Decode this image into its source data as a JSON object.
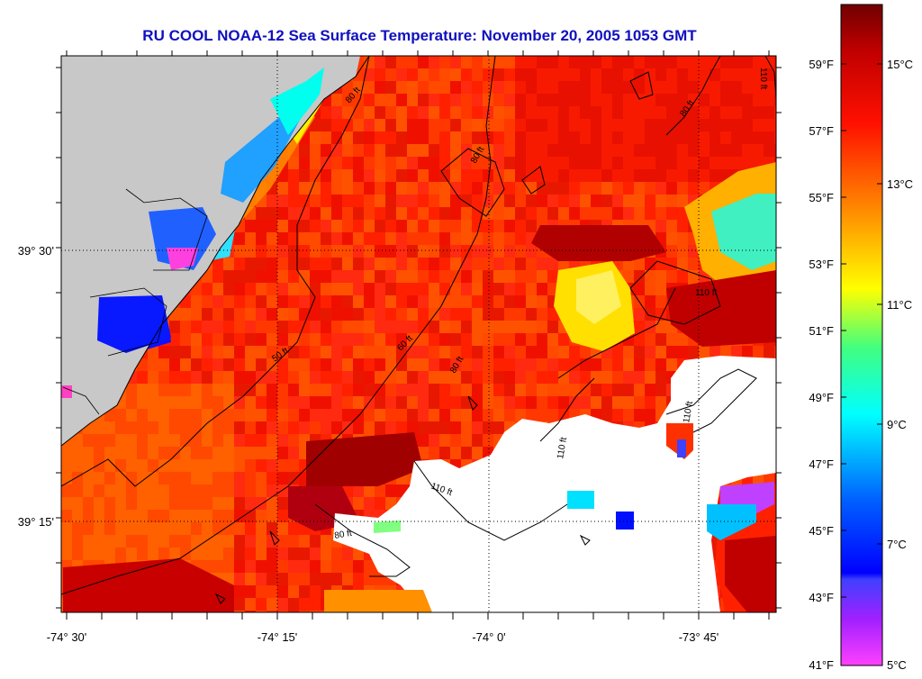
{
  "title": "RU COOL  NOAA-12  Sea Surface Temperature:  November 20, 2005 1053 GMT",
  "longitude_labels": [
    "-74° 30'",
    "-74° 15'",
    "-74° 0'",
    "-73° 45'"
  ],
  "latitude_labels": [
    "39° 30'",
    "39° 15'"
  ],
  "fahrenheit_labels": [
    "59°F",
    "57°F",
    "55°F",
    "53°F",
    "51°F",
    "49°F",
    "47°F",
    "45°F",
    "43°F",
    "41°F"
  ],
  "celsius_labels": [
    "15°C",
    "13°C",
    "11°C",
    "9°C",
    "7°C",
    "5°C"
  ],
  "contour_labels": [
    "80 ft",
    "80 ft",
    "80 ft",
    "110 ft",
    "110 ft",
    "110 ft",
    "110 ft",
    "50 ft",
    "60 ft",
    "80 ft",
    "80 ft",
    "110 ft"
  ],
  "colors": {
    "land": "#c8c8c8",
    "cloud": "#ffffff",
    "title": "#1010c0",
    "colorbar": [
      "#ff40ff",
      "#8020ff",
      "#0000ff",
      "#00a0ff",
      "#00ffff",
      "#40ff80",
      "#ffff00",
      "#ff8000",
      "#ff2000",
      "#c00000",
      "#700000"
    ]
  }
}
